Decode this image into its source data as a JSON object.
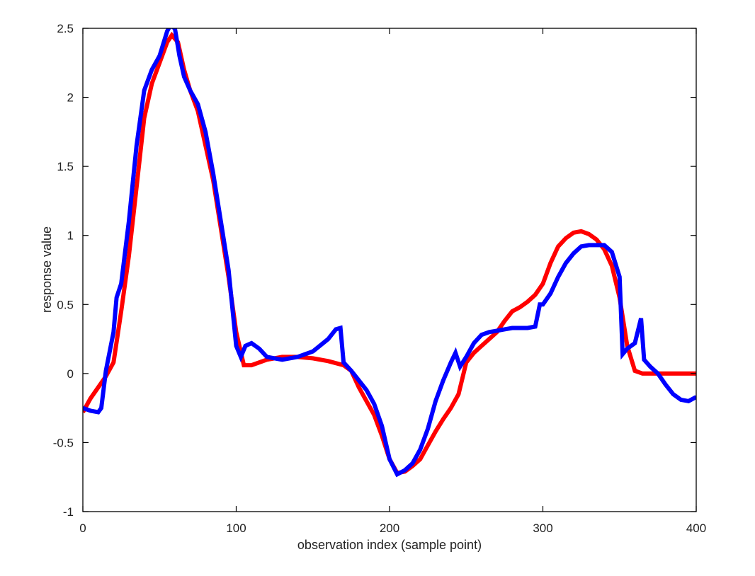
{
  "chart_data": {
    "type": "line",
    "title": "",
    "xlabel": "observation index (sample point)",
    "ylabel": "response value",
    "xlim": [
      0,
      400
    ],
    "ylim": [
      -1,
      2.5
    ],
    "xticks": [
      0,
      100,
      200,
      300,
      400
    ],
    "xtick_labels": [
      "0",
      "100",
      "200",
      "300",
      "400"
    ],
    "yticks": [
      -1,
      -0.5,
      0,
      0.5,
      1,
      1.5,
      2,
      2.5
    ],
    "ytick_labels": [
      "-1",
      "-0.5",
      "0",
      "0.5",
      "1",
      "1.5",
      "2",
      "2.5"
    ],
    "grid": false,
    "series": [
      {
        "color": "#ff0000",
        "x": [
          0,
          5,
          10,
          15,
          20,
          25,
          30,
          35,
          40,
          45,
          50,
          55,
          58,
          62,
          66,
          70,
          75,
          80,
          85,
          90,
          95,
          100,
          105,
          110,
          120,
          130,
          140,
          150,
          160,
          170,
          175,
          180,
          185,
          190,
          195,
          200,
          205,
          210,
          215,
          220,
          225,
          230,
          235,
          240,
          245,
          250,
          255,
          260,
          265,
          270,
          275,
          280,
          285,
          290,
          295,
          300,
          305,
          310,
          315,
          320,
          325,
          330,
          335,
          340,
          345,
          350,
          355,
          360,
          365,
          370,
          380,
          390,
          400
        ],
        "y": [
          -0.28,
          -0.18,
          -0.1,
          -0.02,
          0.08,
          0.45,
          0.85,
          1.35,
          1.85,
          2.1,
          2.25,
          2.4,
          2.45,
          2.4,
          2.2,
          2.05,
          1.9,
          1.65,
          1.4,
          1.05,
          0.7,
          0.3,
          0.06,
          0.06,
          0.1,
          0.12,
          0.12,
          0.11,
          0.09,
          0.06,
          0.02,
          -0.1,
          -0.2,
          -0.3,
          -0.45,
          -0.62,
          -0.72,
          -0.71,
          -0.67,
          -0.62,
          -0.52,
          -0.42,
          -0.33,
          -0.25,
          -0.15,
          0.08,
          0.15,
          0.2,
          0.25,
          0.3,
          0.38,
          0.45,
          0.48,
          0.52,
          0.57,
          0.65,
          0.8,
          0.92,
          0.98,
          1.02,
          1.03,
          1.01,
          0.97,
          0.9,
          0.78,
          0.55,
          0.2,
          0.02,
          0.0,
          0.0,
          0.0,
          0.0,
          0.0
        ]
      },
      {
        "color": "#0000ff",
        "x": [
          0,
          5,
          10,
          12,
          15,
          20,
          22,
          25,
          30,
          35,
          40,
          45,
          50,
          55,
          57,
          60,
          63,
          66,
          70,
          75,
          80,
          85,
          90,
          95,
          100,
          103,
          106,
          110,
          115,
          120,
          130,
          140,
          150,
          160,
          165,
          168,
          170,
          175,
          180,
          185,
          190,
          195,
          200,
          205,
          210,
          215,
          220,
          225,
          230,
          235,
          240,
          243,
          246,
          250,
          255,
          260,
          265,
          270,
          275,
          280,
          285,
          290,
          295,
          298,
          300,
          305,
          310,
          315,
          320,
          325,
          330,
          335,
          340,
          345,
          350,
          352,
          355,
          360,
          364,
          366,
          370,
          375,
          380,
          385,
          390,
          395,
          400
        ],
        "y": [
          -0.25,
          -0.27,
          -0.28,
          -0.25,
          0.02,
          0.3,
          0.55,
          0.65,
          1.1,
          1.65,
          2.05,
          2.2,
          2.3,
          2.48,
          2.52,
          2.5,
          2.3,
          2.15,
          2.05,
          1.95,
          1.75,
          1.45,
          1.1,
          0.75,
          0.2,
          0.12,
          0.2,
          0.22,
          0.18,
          0.12,
          0.1,
          0.12,
          0.16,
          0.25,
          0.32,
          0.33,
          0.08,
          0.02,
          -0.05,
          -0.12,
          -0.22,
          -0.38,
          -0.62,
          -0.73,
          -0.7,
          -0.65,
          -0.55,
          -0.4,
          -0.2,
          -0.05,
          0.08,
          0.15,
          0.05,
          0.12,
          0.22,
          0.28,
          0.3,
          0.31,
          0.32,
          0.33,
          0.33,
          0.33,
          0.34,
          0.5,
          0.5,
          0.58,
          0.7,
          0.8,
          0.87,
          0.92,
          0.93,
          0.93,
          0.93,
          0.88,
          0.7,
          0.14,
          0.18,
          0.22,
          0.4,
          0.1,
          0.05,
          0.0,
          -0.08,
          -0.15,
          -0.19,
          -0.2,
          -0.17
        ]
      }
    ]
  }
}
